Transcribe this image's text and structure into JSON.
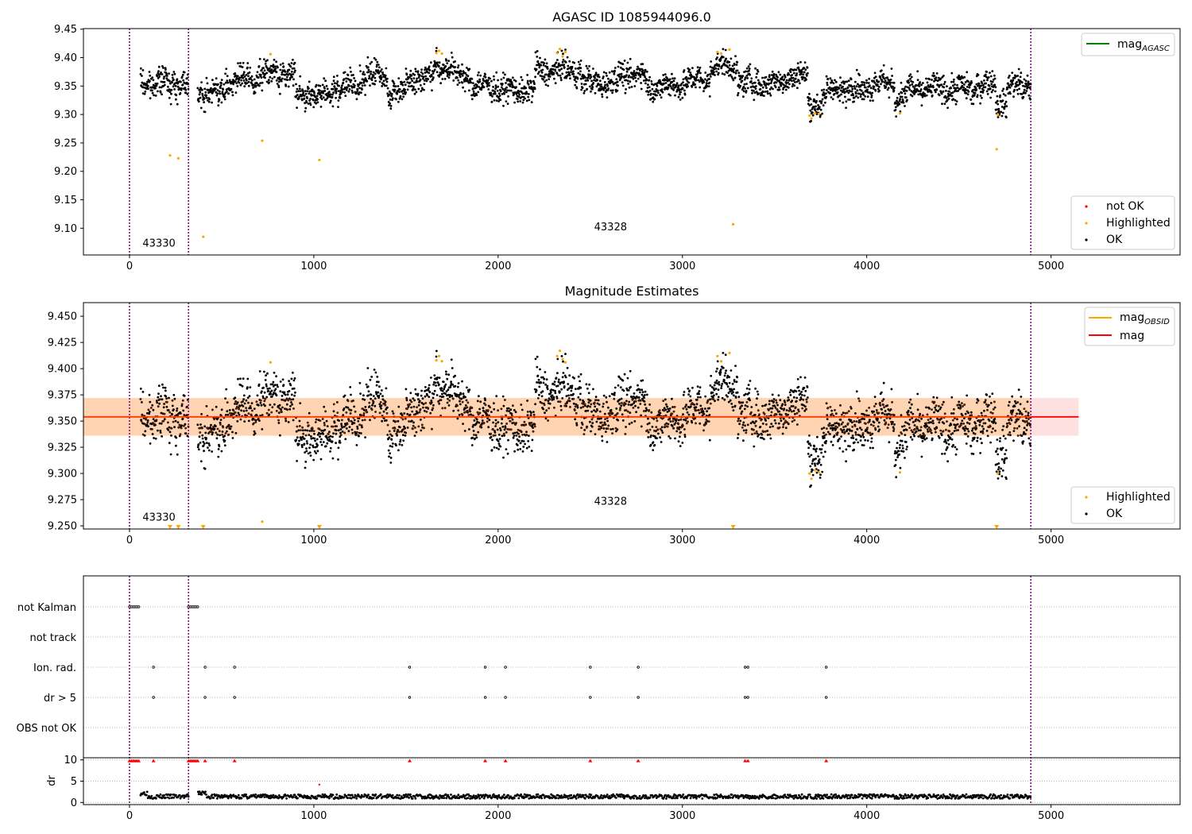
{
  "chart_data": [
    {
      "type": "scatter",
      "title": "AGASC ID 1085944096.0",
      "xlabel": "",
      "ylabel": "",
      "xlim": [
        -250,
        5700
      ],
      "ylim": [
        9.053,
        9.451
      ],
      "xticks": [
        0,
        1000,
        2000,
        3000,
        4000,
        5000
      ],
      "yticks": [
        9.1,
        9.15,
        9.2,
        9.25,
        9.3,
        9.35,
        9.4,
        9.45
      ],
      "ytick_format": 2,
      "obs_boundaries": [
        0,
        320,
        4890
      ],
      "obs_labels": [
        {
          "text": "43330",
          "x": 160,
          "y": 9.068
        },
        {
          "text": "43328",
          "x": 2610,
          "y": 9.096
        }
      ],
      "line_legend": {
        "position": "top-right",
        "entries": [
          {
            "label": "mag",
            "sub": "AGASC",
            "color": "#008000"
          }
        ]
      },
      "point_legend": {
        "position": "bottom-right",
        "entries": [
          {
            "label": "not OK",
            "color": "#ff0000"
          },
          {
            "label": "Highlighted",
            "color": "#ffa500"
          },
          {
            "label": "OK",
            "color": "#000000"
          }
        ]
      },
      "series": [
        {
          "name": "Highlighted",
          "color": "#ffa500",
          "points": [
            [
              220,
              9.228
            ],
            [
              265,
              9.223
            ],
            [
              400,
              9.085
            ],
            [
              720,
              9.254
            ],
            [
              765,
              9.406
            ],
            [
              1030,
              9.22
            ],
            [
              1665,
              9.408
            ],
            [
              1680,
              9.412
            ],
            [
              1695,
              9.407
            ],
            [
              2320,
              9.408
            ],
            [
              2335,
              9.415
            ],
            [
              2350,
              9.402
            ],
            [
              2365,
              9.41
            ],
            [
              3190,
              9.41
            ],
            [
              3210,
              9.407
            ],
            [
              3255,
              9.414
            ],
            [
              3275,
              9.107
            ],
            [
              3690,
              9.298
            ],
            [
              3700,
              9.293
            ],
            [
              3720,
              9.302
            ],
            [
              3740,
              9.301
            ],
            [
              4180,
              9.302
            ],
            [
              4705,
              9.239
            ],
            [
              4710,
              9.3
            ],
            [
              4712,
              9.3
            ]
          ]
        }
      ],
      "ok_segments": [
        [
          60,
          320,
          9.356
        ],
        [
          370,
          520,
          9.338
        ],
        [
          520,
          700,
          9.36
        ],
        [
          700,
          900,
          9.372
        ],
        [
          900,
          1100,
          9.335
        ],
        [
          1100,
          1250,
          9.348
        ],
        [
          1250,
          1400,
          9.368
        ],
        [
          1400,
          1500,
          9.34
        ],
        [
          1500,
          1650,
          9.365
        ],
        [
          1650,
          1750,
          9.385
        ],
        [
          1750,
          1850,
          9.368
        ],
        [
          1850,
          2000,
          9.35
        ],
        [
          2000,
          2200,
          9.343
        ],
        [
          2200,
          2450,
          9.378
        ],
        [
          2450,
          2650,
          9.357
        ],
        [
          2650,
          2800,
          9.37
        ],
        [
          2800,
          3000,
          9.35
        ],
        [
          3000,
          3150,
          9.36
        ],
        [
          3150,
          3300,
          9.385
        ],
        [
          3300,
          3550,
          9.355
        ],
        [
          3550,
          3680,
          9.368
        ],
        [
          3680,
          3780,
          9.32
        ],
        [
          3780,
          4000,
          9.345
        ],
        [
          4000,
          4150,
          9.355
        ],
        [
          4150,
          4220,
          9.33
        ],
        [
          4220,
          4600,
          9.345
        ],
        [
          4600,
          4700,
          9.352
        ],
        [
          4700,
          4760,
          9.322
        ],
        [
          4760,
          4890,
          9.35
        ]
      ]
    },
    {
      "type": "scatter",
      "title": "Magnitude Estimates",
      "xlabel": "",
      "ylabel": "",
      "xlim": [
        -250,
        5700
      ],
      "ylim": [
        9.247,
        9.463
      ],
      "xticks": [
        0,
        1000,
        2000,
        3000,
        4000,
        5000
      ],
      "yticks": [
        9.25,
        9.275,
        9.3,
        9.325,
        9.35,
        9.375,
        9.4,
        9.425,
        9.45
      ],
      "ytick_format": 3,
      "obs_boundaries": [
        0,
        320,
        4890
      ],
      "obs_labels": [
        {
          "text": "43330",
          "x": 160,
          "y": 9.255
        },
        {
          "text": "43328",
          "x": 2610,
          "y": 9.27
        }
      ],
      "mag_band": {
        "mean": 9.354,
        "low": 9.336,
        "high": 9.372,
        "x0": -250,
        "x1": 5150
      },
      "line_legend": {
        "position": "top-right",
        "entries": [
          {
            "label": "mag",
            "sub": "OBSID",
            "color": "#ffa500"
          },
          {
            "label": "mag",
            "sub": "",
            "color": "#ff0000"
          }
        ]
      },
      "point_legend": {
        "position": "bottom-right",
        "entries": [
          {
            "label": "Highlighted",
            "color": "#ffa500"
          },
          {
            "label": "OK",
            "color": "#000000"
          }
        ]
      },
      "series": [
        {
          "name": "Highlighted",
          "color": "#ffa500",
          "points": [
            [
              765,
              9.406
            ],
            [
              1665,
              9.408
            ],
            [
              1680,
              9.412
            ],
            [
              1695,
              9.407
            ],
            [
              2320,
              9.412
            ],
            [
              2335,
              9.417
            ],
            [
              2350,
              9.409
            ],
            [
              2365,
              9.406
            ],
            [
              3190,
              9.412
            ],
            [
              3210,
              9.407
            ],
            [
              3255,
              9.415
            ],
            [
              720,
              9.254
            ],
            [
              3690,
              9.3
            ],
            [
              3700,
              9.295
            ],
            [
              3720,
              9.303
            ],
            [
              3740,
              9.301
            ],
            [
              4180,
              9.301
            ],
            [
              4710,
              9.3
            ]
          ]
        }
      ],
      "censored_points": [
        220,
        265,
        400,
        1030,
        3275,
        4705
      ],
      "ok_segments": "same-as-first"
    },
    {
      "type": "scatter",
      "title": "",
      "xlabel": "",
      "ylabel": "",
      "xlim": [
        -250,
        5700
      ],
      "xticks": [
        0,
        1000,
        2000,
        3000,
        4000,
        5000
      ],
      "flag_rows": [
        "not Kalman",
        "not track",
        "Ion. rad.",
        "dr > 5",
        "OBS not OK"
      ],
      "flag_points": {
        "not Kalman": [
          0,
          10,
          20,
          30,
          40,
          50,
          320,
          330,
          340,
          350,
          360,
          370
        ],
        "not track": [],
        "Ion. rad.": [
          130,
          410,
          570,
          1520,
          1930,
          2040,
          2500,
          2760,
          3340,
          3355,
          3780
        ],
        "dr > 5": [
          130,
          410,
          570,
          1520,
          1930,
          2040,
          2500,
          2760,
          3340,
          3355,
          3780
        ],
        "OBS not OK": []
      },
      "dr_panel": {
        "ylabel": "dr",
        "ylim": [
          -0.5,
          10.5
        ],
        "yticks": [
          0,
          5,
          10
        ],
        "clipped_points": [
          0,
          10,
          20,
          30,
          40,
          50,
          130,
          320,
          330,
          340,
          350,
          360,
          370,
          410,
          570,
          1520,
          1930,
          2040,
          2500,
          2760,
          3340,
          3355,
          3780
        ],
        "outliers": [
          [
            1030,
            4.2
          ]
        ]
      }
    }
  ]
}
